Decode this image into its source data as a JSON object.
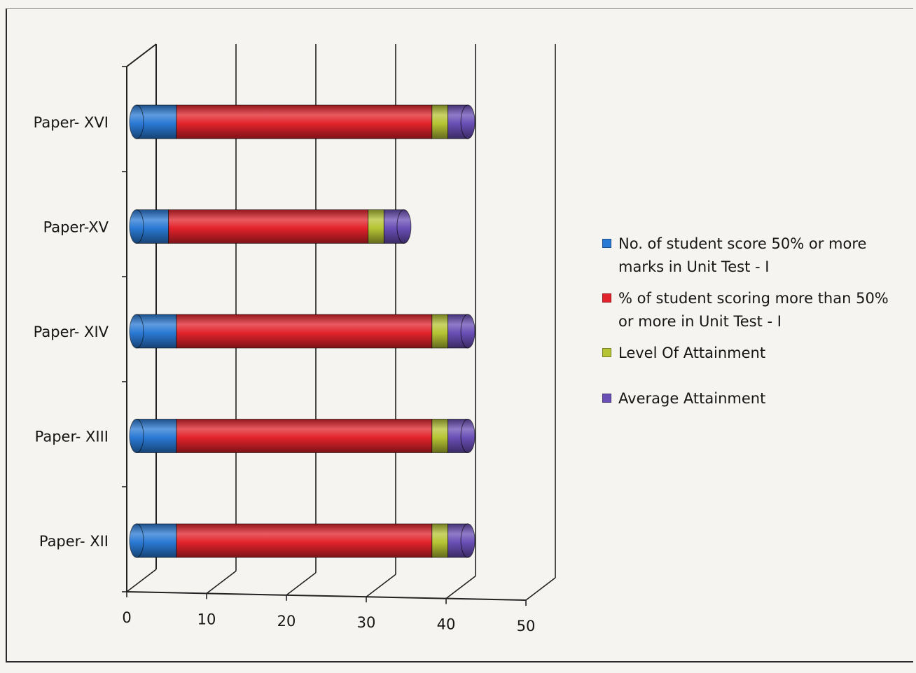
{
  "chart_data": {
    "type": "bar",
    "orientation": "horizontal",
    "stacked": true,
    "style": "3d-cylinder",
    "title": "",
    "xlabel": "",
    "ylabel": "",
    "categories": [
      "Paper- XII",
      "Paper- XIII",
      "Paper- XIV",
      "Paper-XV",
      "Paper- XVI"
    ],
    "xlim": [
      0,
      50
    ],
    "xticks": [
      "0",
      "10",
      "20",
      "30",
      "40",
      "50"
    ],
    "grid": "vertical-major",
    "legend_position": "right",
    "series": [
      {
        "name": "No. of student score 50% or more marks in Unit Test - I",
        "color": "#2a79d4",
        "values": [
          5,
          5,
          5,
          4,
          5
        ]
      },
      {
        "name": "% of student scoring more than 50% or more in Unit Test - I",
        "color": "#e2232b",
        "values": [
          32,
          32,
          32,
          25,
          32
        ]
      },
      {
        "name": "Level  Of Attainment",
        "color": "#b6c434",
        "values": [
          2,
          2,
          2,
          2,
          2
        ]
      },
      {
        "name": "Average Attainment",
        "color": "#6a4fb6",
        "values": [
          2.5,
          2.5,
          2.5,
          2.5,
          2.5
        ]
      }
    ]
  },
  "legend": {
    "items": [
      "No. of student score 50% or more\nmarks in Unit Test - I",
      "% of student scoring more than 50%\nor more in Unit Test - I",
      "Level  Of Attainment",
      "Average Attainment"
    ]
  }
}
